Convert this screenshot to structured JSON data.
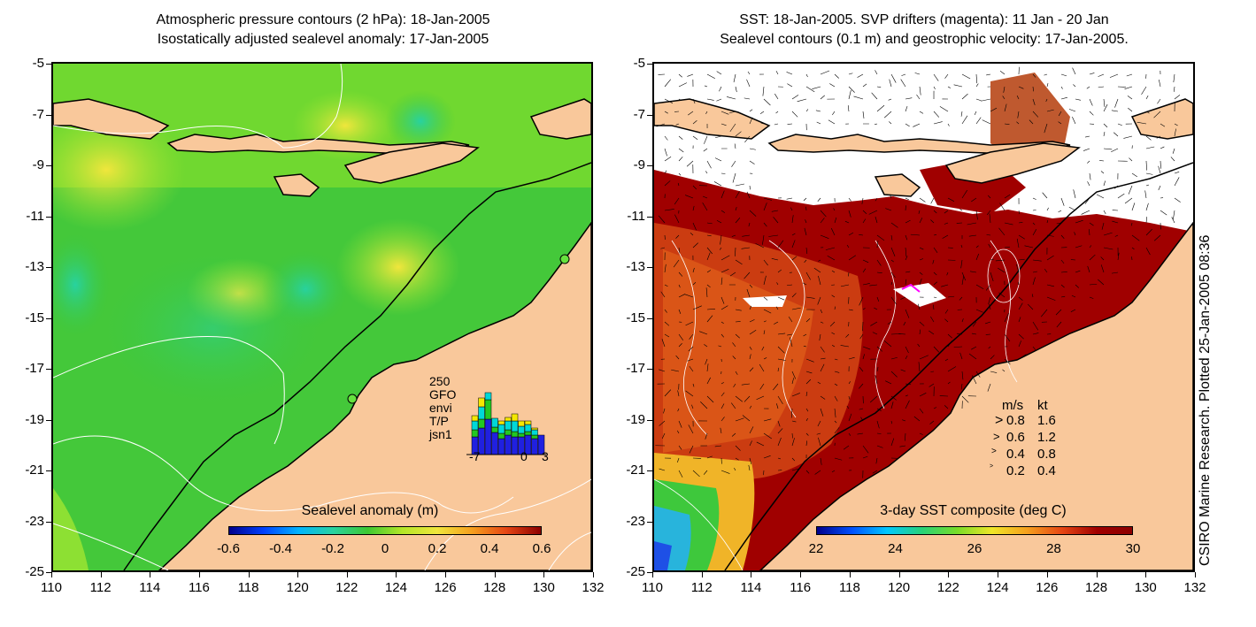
{
  "left_panel": {
    "title_line1": "Atmospheric pressure contours (2 hPa): 18-Jan-2005",
    "title_line2": "Isostatically adjusted sealevel anomaly: 17-Jan-2005",
    "colorbar_label": "Sealevel anomaly (m)",
    "colorbar_ticks": [
      "-0.6",
      "-0.4",
      "-0.2",
      "0",
      "0.2",
      "0.4",
      "0.6"
    ],
    "inset": {
      "ymax_label": "250",
      "series_labels": [
        "GFO",
        "envi",
        "T/P",
        "jsn1"
      ],
      "series_colors": [
        "#f5e800",
        "#00d8d8",
        "#22c822",
        "#2020e0"
      ],
      "x_ticks": [
        "-7",
        "0",
        "3"
      ]
    }
  },
  "right_panel": {
    "title_line1": "SST: 18-Jan-2005. SVP drifters (magenta): 11 Jan - 20 Jan",
    "title_line2": "Sealevel contours (0.1 m) and geostrophic velocity: 17-Jan-2005.",
    "colorbar_label": "3-day SST composite (deg C)",
    "colorbar_ticks": [
      "22",
      "24",
      "26",
      "28",
      "30"
    ],
    "speed_legend": {
      "header_ms": "m/s",
      "header_kt": "kt",
      "rows": [
        {
          "ms": "0.8",
          "kt": "1.6"
        },
        {
          "ms": "0.6",
          "kt": "1.2"
        },
        {
          "ms": "0.4",
          "kt": "0.8"
        },
        {
          "ms": "0.2",
          "kt": "0.4"
        }
      ]
    }
  },
  "axes": {
    "y_ticks": [
      "-5",
      "-7",
      "-9",
      "-11",
      "-13",
      "-15",
      "-17",
      "-19",
      "-21",
      "-23",
      "-25"
    ],
    "x_ticks": [
      "110",
      "112",
      "114",
      "116",
      "118",
      "120",
      "122",
      "124",
      "126",
      "128",
      "130",
      "132"
    ]
  },
  "credit": "CSIRO Marine Research. Plotted 25-Jan-2005 08:36",
  "colors": {
    "land": "#f9c89b",
    "ocean_green": "#3ec832",
    "sst_dark_red": "#a00000",
    "drifter_magenta": "#ff00ff"
  }
}
